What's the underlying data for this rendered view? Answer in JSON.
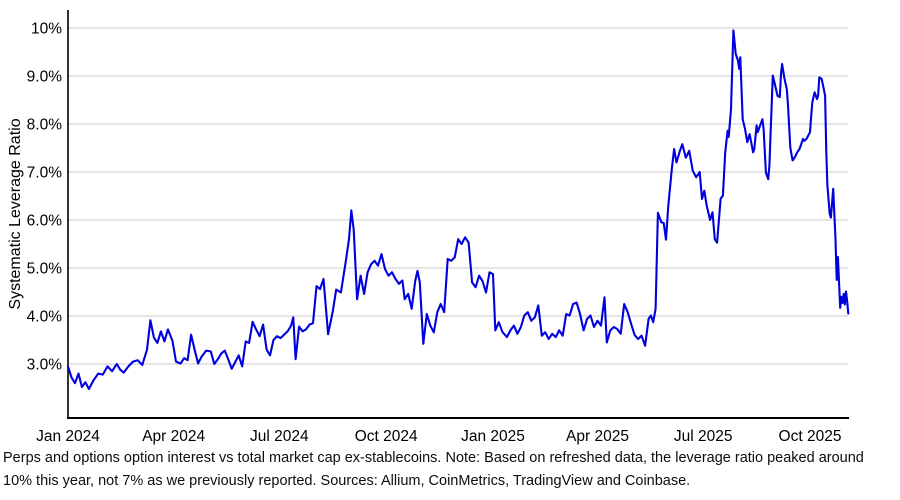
{
  "caption": {
    "text": "Perps and options option interest vs total market cap ex-stablecoins. Note: Based on refreshed data, the leverage ratio peaked around 10% this year, not 7% as we previously reported. Sources: Allium, CoinMetrics, TradingView and Coinbase."
  },
  "chart_data": {
    "type": "line",
    "title": "",
    "xlabel": "",
    "ylabel": "Systematic Leverage Ratio",
    "unit": "%",
    "grid": true,
    "legend": "none",
    "line_color": "#0000DE",
    "grid_color": "#cbcbcb",
    "axis_color": "#000000",
    "ylim": [
      1.9,
      10.4
    ],
    "x_range": [
      "2024-01-01",
      "2025-11-03"
    ],
    "y_ticks": [
      {
        "label": "3.0%",
        "v": 3
      },
      {
        "label": "4.0%",
        "v": 4
      },
      {
        "label": "5.0%",
        "v": 5
      },
      {
        "label": "6.0%",
        "v": 6
      },
      {
        "label": "7.0%",
        "v": 7
      },
      {
        "label": "8.0%",
        "v": 8
      },
      {
        "label": "9.0%",
        "v": 9
      },
      {
        "label": "10%",
        "v": 10
      }
    ],
    "x_ticks": [
      {
        "label": "Jan 2024",
        "d": "2024-01-01"
      },
      {
        "label": "Apr 2024",
        "d": "2024-04-01"
      },
      {
        "label": "Jul 2024",
        "d": "2024-07-01"
      },
      {
        "label": "Oct 2024",
        "d": "2024-10-01"
      },
      {
        "label": "Jan 2025",
        "d": "2025-01-01"
      },
      {
        "label": "Apr 2025",
        "d": "2025-04-01"
      },
      {
        "label": "Jul 2025",
        "d": "2025-07-01"
      },
      {
        "label": "Oct 2025",
        "d": "2025-10-01"
      }
    ],
    "series": [
      [
        "2024-01-01",
        2.95
      ],
      [
        "2024-01-04",
        2.72
      ],
      [
        "2024-01-07",
        2.6
      ],
      [
        "2024-01-10",
        2.8
      ],
      [
        "2024-01-13",
        2.52
      ],
      [
        "2024-01-16",
        2.62
      ],
      [
        "2024-01-19",
        2.48
      ],
      [
        "2024-01-23",
        2.66
      ],
      [
        "2024-01-27",
        2.8
      ],
      [
        "2024-01-31",
        2.78
      ],
      [
        "2024-02-04",
        2.95
      ],
      [
        "2024-02-08",
        2.85
      ],
      [
        "2024-02-12",
        3.0
      ],
      [
        "2024-02-15",
        2.88
      ],
      [
        "2024-02-18",
        2.82
      ],
      [
        "2024-02-22",
        2.95
      ],
      [
        "2024-02-26",
        3.05
      ],
      [
        "2024-03-01",
        3.08
      ],
      [
        "2024-03-05",
        2.98
      ],
      [
        "2024-03-09",
        3.3
      ],
      [
        "2024-03-12",
        3.91
      ],
      [
        "2024-03-15",
        3.55
      ],
      [
        "2024-03-18",
        3.44
      ],
      [
        "2024-03-21",
        3.68
      ],
      [
        "2024-03-24",
        3.47
      ],
      [
        "2024-03-27",
        3.72
      ],
      [
        "2024-03-31",
        3.48
      ],
      [
        "2024-04-03",
        3.05
      ],
      [
        "2024-04-07",
        3.01
      ],
      [
        "2024-04-10",
        3.12
      ],
      [
        "2024-04-13",
        3.08
      ],
      [
        "2024-04-16",
        3.61
      ],
      [
        "2024-04-19",
        3.3
      ],
      [
        "2024-04-22",
        3.01
      ],
      [
        "2024-04-25",
        3.15
      ],
      [
        "2024-04-29",
        3.28
      ],
      [
        "2024-05-03",
        3.26
      ],
      [
        "2024-05-06",
        3.0
      ],
      [
        "2024-05-09",
        3.1
      ],
      [
        "2024-05-12",
        3.22
      ],
      [
        "2024-05-15",
        3.28
      ],
      [
        "2024-05-18",
        3.1
      ],
      [
        "2024-05-21",
        2.9
      ],
      [
        "2024-05-24",
        3.04
      ],
      [
        "2024-05-27",
        3.18
      ],
      [
        "2024-05-30",
        2.95
      ],
      [
        "2024-06-02",
        3.47
      ],
      [
        "2024-06-05",
        3.44
      ],
      [
        "2024-06-08",
        3.88
      ],
      [
        "2024-06-11",
        3.72
      ],
      [
        "2024-06-14",
        3.58
      ],
      [
        "2024-06-17",
        3.82
      ],
      [
        "2024-06-20",
        3.3
      ],
      [
        "2024-06-23",
        3.18
      ],
      [
        "2024-06-26",
        3.5
      ],
      [
        "2024-06-29",
        3.58
      ],
      [
        "2024-07-02",
        3.54
      ],
      [
        "2024-07-05",
        3.61
      ],
      [
        "2024-07-08",
        3.68
      ],
      [
        "2024-07-11",
        3.79
      ],
      [
        "2024-07-13",
        3.97
      ],
      [
        "2024-07-15",
        3.1
      ],
      [
        "2024-07-18",
        3.78
      ],
      [
        "2024-07-21",
        3.68
      ],
      [
        "2024-07-24",
        3.72
      ],
      [
        "2024-07-27",
        3.82
      ],
      [
        "2024-07-30",
        3.85
      ],
      [
        "2024-08-02",
        4.62
      ],
      [
        "2024-08-05",
        4.56
      ],
      [
        "2024-08-08",
        4.77
      ],
      [
        "2024-08-12",
        3.62
      ],
      [
        "2024-08-16",
        4.1
      ],
      [
        "2024-08-19",
        4.55
      ],
      [
        "2024-08-23",
        4.49
      ],
      [
        "2024-08-27",
        5.1
      ],
      [
        "2024-08-30",
        5.6
      ],
      [
        "2024-09-01",
        6.2
      ],
      [
        "2024-09-03",
        5.8
      ],
      [
        "2024-09-06",
        4.35
      ],
      [
        "2024-09-09",
        4.84
      ],
      [
        "2024-09-12",
        4.46
      ],
      [
        "2024-09-15",
        4.91
      ],
      [
        "2024-09-18",
        5.08
      ],
      [
        "2024-09-21",
        5.15
      ],
      [
        "2024-09-24",
        5.05
      ],
      [
        "2024-09-27",
        5.29
      ],
      [
        "2024-09-30",
        4.98
      ],
      [
        "2024-10-03",
        4.84
      ],
      [
        "2024-10-06",
        4.91
      ],
      [
        "2024-10-09",
        4.77
      ],
      [
        "2024-10-12",
        4.67
      ],
      [
        "2024-10-15",
        4.74
      ],
      [
        "2024-10-17",
        4.35
      ],
      [
        "2024-10-20",
        4.46
      ],
      [
        "2024-10-23",
        4.15
      ],
      [
        "2024-10-26",
        4.73
      ],
      [
        "2024-10-28",
        4.94
      ],
      [
        "2024-10-30",
        4.7
      ],
      [
        "2024-11-02",
        3.42
      ],
      [
        "2024-11-05",
        4.04
      ],
      [
        "2024-11-08",
        3.8
      ],
      [
        "2024-11-11",
        3.66
      ],
      [
        "2024-11-14",
        4.08
      ],
      [
        "2024-11-17",
        4.25
      ],
      [
        "2024-11-20",
        4.08
      ],
      [
        "2024-11-23",
        5.19
      ],
      [
        "2024-11-26",
        5.15
      ],
      [
        "2024-11-29",
        5.22
      ],
      [
        "2024-12-02",
        5.6
      ],
      [
        "2024-12-05",
        5.5
      ],
      [
        "2024-12-08",
        5.64
      ],
      [
        "2024-12-11",
        5.53
      ],
      [
        "2024-12-14",
        4.7
      ],
      [
        "2024-12-17",
        4.6
      ],
      [
        "2024-12-20",
        4.84
      ],
      [
        "2024-12-23",
        4.73
      ],
      [
        "2024-12-26",
        4.49
      ],
      [
        "2024-12-29",
        4.91
      ],
      [
        "2025-01-01",
        4.87
      ],
      [
        "2025-01-03",
        3.7
      ],
      [
        "2025-01-06",
        3.87
      ],
      [
        "2025-01-09",
        3.67
      ],
      [
        "2025-01-13",
        3.56
      ],
      [
        "2025-01-16",
        3.7
      ],
      [
        "2025-01-19",
        3.8
      ],
      [
        "2025-01-22",
        3.63
      ],
      [
        "2025-01-25",
        3.77
      ],
      [
        "2025-01-28",
        4.01
      ],
      [
        "2025-01-31",
        4.08
      ],
      [
        "2025-02-03",
        3.9
      ],
      [
        "2025-02-06",
        3.97
      ],
      [
        "2025-02-09",
        4.22
      ],
      [
        "2025-02-12",
        3.59
      ],
      [
        "2025-02-15",
        3.66
      ],
      [
        "2025-02-18",
        3.52
      ],
      [
        "2025-02-21",
        3.63
      ],
      [
        "2025-02-24",
        3.56
      ],
      [
        "2025-02-27",
        3.7
      ],
      [
        "2025-03-02",
        3.59
      ],
      [
        "2025-03-05",
        4.04
      ],
      [
        "2025-03-08",
        4.01
      ],
      [
        "2025-03-11",
        4.25
      ],
      [
        "2025-03-14",
        4.28
      ],
      [
        "2025-03-17",
        4.04
      ],
      [
        "2025-03-20",
        3.7
      ],
      [
        "2025-03-23",
        3.94
      ],
      [
        "2025-03-26",
        4.01
      ],
      [
        "2025-03-29",
        3.77
      ],
      [
        "2025-04-01",
        3.9
      ],
      [
        "2025-04-04",
        3.8
      ],
      [
        "2025-04-07",
        4.39
      ],
      [
        "2025-04-09",
        3.45
      ],
      [
        "2025-04-12",
        3.7
      ],
      [
        "2025-04-15",
        3.77
      ],
      [
        "2025-04-18",
        3.73
      ],
      [
        "2025-04-21",
        3.63
      ],
      [
        "2025-04-24",
        4.25
      ],
      [
        "2025-04-27",
        4.08
      ],
      [
        "2025-04-30",
        3.83
      ],
      [
        "2025-05-03",
        3.6
      ],
      [
        "2025-05-06",
        3.52
      ],
      [
        "2025-05-09",
        3.59
      ],
      [
        "2025-05-12",
        3.38
      ],
      [
        "2025-05-15",
        3.94
      ],
      [
        "2025-05-17",
        4.01
      ],
      [
        "2025-05-19",
        3.87
      ],
      [
        "2025-05-21",
        4.15
      ],
      [
        "2025-05-23",
        6.15
      ],
      [
        "2025-05-26",
        5.95
      ],
      [
        "2025-05-28",
        5.94
      ],
      [
        "2025-05-30",
        5.59
      ],
      [
        "2025-06-01",
        6.3
      ],
      [
        "2025-06-04",
        7.06
      ],
      [
        "2025-06-06",
        7.48
      ],
      [
        "2025-06-08",
        7.2
      ],
      [
        "2025-06-11",
        7.44
      ],
      [
        "2025-06-13",
        7.58
      ],
      [
        "2025-06-16",
        7.3
      ],
      [
        "2025-06-19",
        7.44
      ],
      [
        "2025-06-22",
        7.03
      ],
      [
        "2025-06-25",
        6.89
      ],
      [
        "2025-06-28",
        7.0
      ],
      [
        "2025-06-30",
        6.44
      ],
      [
        "2025-07-02",
        6.61
      ],
      [
        "2025-07-04",
        6.3
      ],
      [
        "2025-07-07",
        6.0
      ],
      [
        "2025-07-09",
        6.16
      ],
      [
        "2025-07-11",
        5.6
      ],
      [
        "2025-07-13",
        5.53
      ],
      [
        "2025-07-16",
        6.44
      ],
      [
        "2025-07-18",
        6.51
      ],
      [
        "2025-07-20",
        7.4
      ],
      [
        "2025-07-22",
        7.86
      ],
      [
        "2025-07-23",
        7.73
      ],
      [
        "2025-07-25",
        8.31
      ],
      [
        "2025-07-27",
        9.95
      ],
      [
        "2025-07-29",
        9.46
      ],
      [
        "2025-07-31",
        9.32
      ],
      [
        "2025-08-01",
        9.15
      ],
      [
        "2025-08-02",
        9.39
      ],
      [
        "2025-08-04",
        8.1
      ],
      [
        "2025-08-06",
        7.9
      ],
      [
        "2025-08-08",
        7.62
      ],
      [
        "2025-08-10",
        7.79
      ],
      [
        "2025-08-13",
        7.41
      ],
      [
        "2025-08-14",
        7.48
      ],
      [
        "2025-08-16",
        7.97
      ],
      [
        "2025-08-17",
        7.83
      ],
      [
        "2025-08-21",
        8.1
      ],
      [
        "2025-08-22",
        7.9
      ],
      [
        "2025-08-24",
        6.99
      ],
      [
        "2025-08-26",
        6.85
      ],
      [
        "2025-08-27",
        7.13
      ],
      [
        "2025-08-28",
        7.76
      ],
      [
        "2025-08-30",
        9.01
      ],
      [
        "2025-09-01",
        8.8
      ],
      [
        "2025-09-03",
        8.59
      ],
      [
        "2025-09-05",
        8.56
      ],
      [
        "2025-09-06",
        9.04
      ],
      [
        "2025-09-07",
        9.25
      ],
      [
        "2025-09-09",
        8.94
      ],
      [
        "2025-09-11",
        8.73
      ],
      [
        "2025-09-12",
        8.42
      ],
      [
        "2025-09-14",
        7.51
      ],
      [
        "2025-09-16",
        7.24
      ],
      [
        "2025-09-18",
        7.31
      ],
      [
        "2025-09-20",
        7.41
      ],
      [
        "2025-09-22",
        7.48
      ],
      [
        "2025-09-24",
        7.62
      ],
      [
        "2025-09-25",
        7.69
      ],
      [
        "2025-09-26",
        7.65
      ],
      [
        "2025-09-28",
        7.69
      ],
      [
        "2025-10-01",
        7.83
      ],
      [
        "2025-10-02",
        8.17
      ],
      [
        "2025-10-03",
        8.45
      ],
      [
        "2025-10-05",
        8.66
      ],
      [
        "2025-10-07",
        8.52
      ],
      [
        "2025-10-08",
        8.59
      ],
      [
        "2025-10-09",
        8.97
      ],
      [
        "2025-10-11",
        8.94
      ],
      [
        "2025-10-12",
        8.83
      ],
      [
        "2025-10-14",
        8.59
      ],
      [
        "2025-10-15",
        7.41
      ],
      [
        "2025-10-16",
        6.72
      ],
      [
        "2025-10-18",
        6.13
      ],
      [
        "2025-10-19",
        6.05
      ],
      [
        "2025-10-21",
        6.65
      ],
      [
        "2025-10-23",
        5.6
      ],
      [
        "2025-10-24",
        4.75
      ],
      [
        "2025-10-25",
        5.23
      ],
      [
        "2025-10-27",
        4.17
      ],
      [
        "2025-10-28",
        4.4
      ],
      [
        "2025-10-29",
        4.27
      ],
      [
        "2025-10-30",
        4.46
      ],
      [
        "2025-10-31",
        4.24
      ],
      [
        "2025-11-01",
        4.51
      ],
      [
        "2025-11-02",
        4.3
      ],
      [
        "2025-11-03",
        4.05
      ]
    ]
  }
}
